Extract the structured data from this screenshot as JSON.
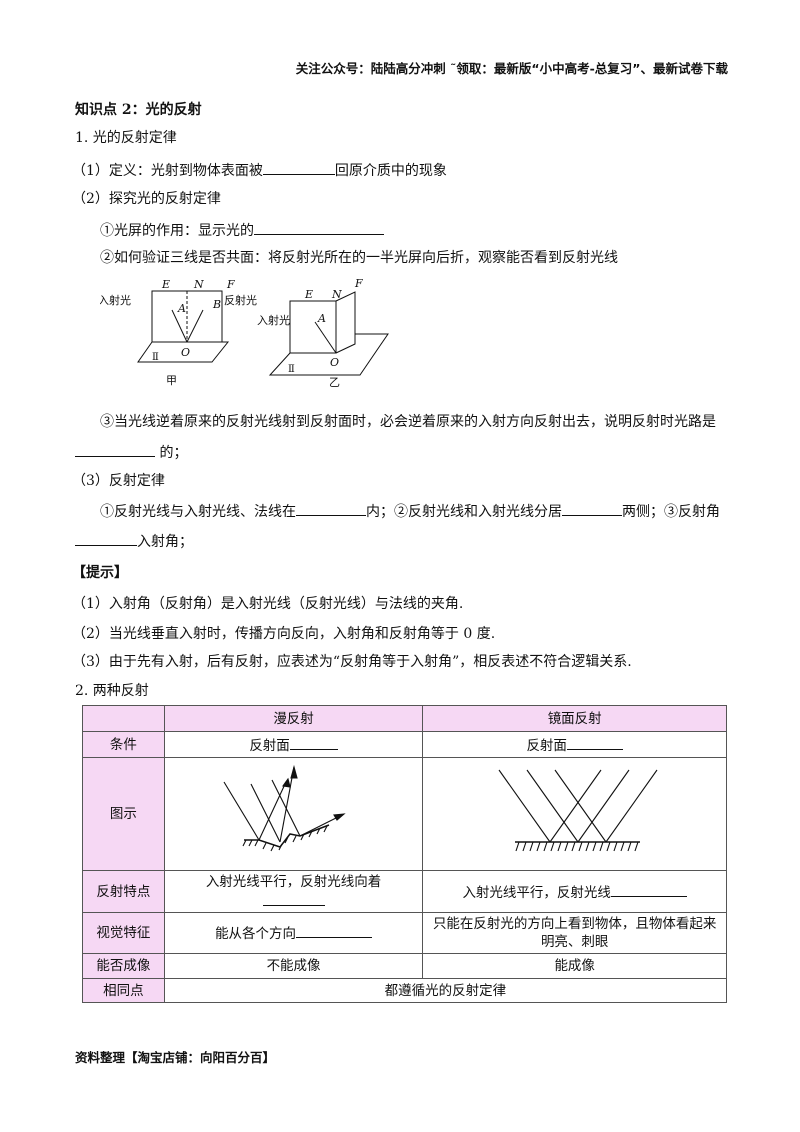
{
  "header": "关注公众号：陆陆高分冲刺  ˜领取：最新版“小中高考-总复习”、最新试卷下载",
  "title": "知识点 2：光的反射",
  "s1": "1. 光的反射定律",
  "def_a": "（1）定义：光射到物体表面被",
  "def_b": "回原介质中的现象",
  "explore": "（2）探究光的反射定律",
  "screen": "①光屏的作用：显示光的",
  "coplanar": "②如何验证三线是否共面：将反射光所在的一半光屏向后折，观察能否看到反射光线",
  "fig": {
    "E": "E",
    "N": "N",
    "F": "F",
    "A": "A",
    "B": "B",
    "O": "O",
    "II": "Ⅱ",
    "incident": "入射光",
    "reflected": "反射光",
    "jia": "甲",
    "yi": "乙"
  },
  "reverse_a": "③当光线逆着原来的反射光线射到反射面时，必会逆着原来的入射方向反射出去，说明反射时光路是",
  "reverse_b": "的；",
  "law": "（3）反射定律",
  "law_a": "①反射光线与入射光线、法线在",
  "law_b": "内；②反射光线和入射光线分居",
  "law_c": "两侧；③反射角",
  "law_d": "入射角；",
  "tip": "【提示】",
  "tips": [
    "（1）入射角（反射角）是入射光线（反射光线）与法线的夹角.",
    "（2）当光线垂直入射时，传播方向反向，入射角和反射角等于 0  度.",
    "（3）由于先有入射，后有反射，应表述为“反射角等于入射角”，相反表述不符合逻辑关系."
  ],
  "s2": "2. 两种反射",
  "table": {
    "cols": [
      "漫反射",
      "镜面反射"
    ],
    "cond": "条件",
    "cond_d": "反射面",
    "cond_m": "反射面",
    "fig": "图示",
    "feat": "反射特点",
    "feat_d": "入射光线平行，反射光线向着",
    "feat_m": "入射光线平行，反射光线",
    "vis": "视觉特征",
    "vis_d": "能从各个方向",
    "vis_m": "只能在反射光的方向上看到物体，且物体看起来明亮、刺眼",
    "img": "能否成像",
    "img_d": "不能成像",
    "img_m": "能成像",
    "same": "相同点",
    "same_v": "都遵循光的反射定律"
  },
  "footer": "资料整理【淘宝店铺：向阳百分百】",
  "colors": {
    "table_header": "#f6d8f4"
  }
}
